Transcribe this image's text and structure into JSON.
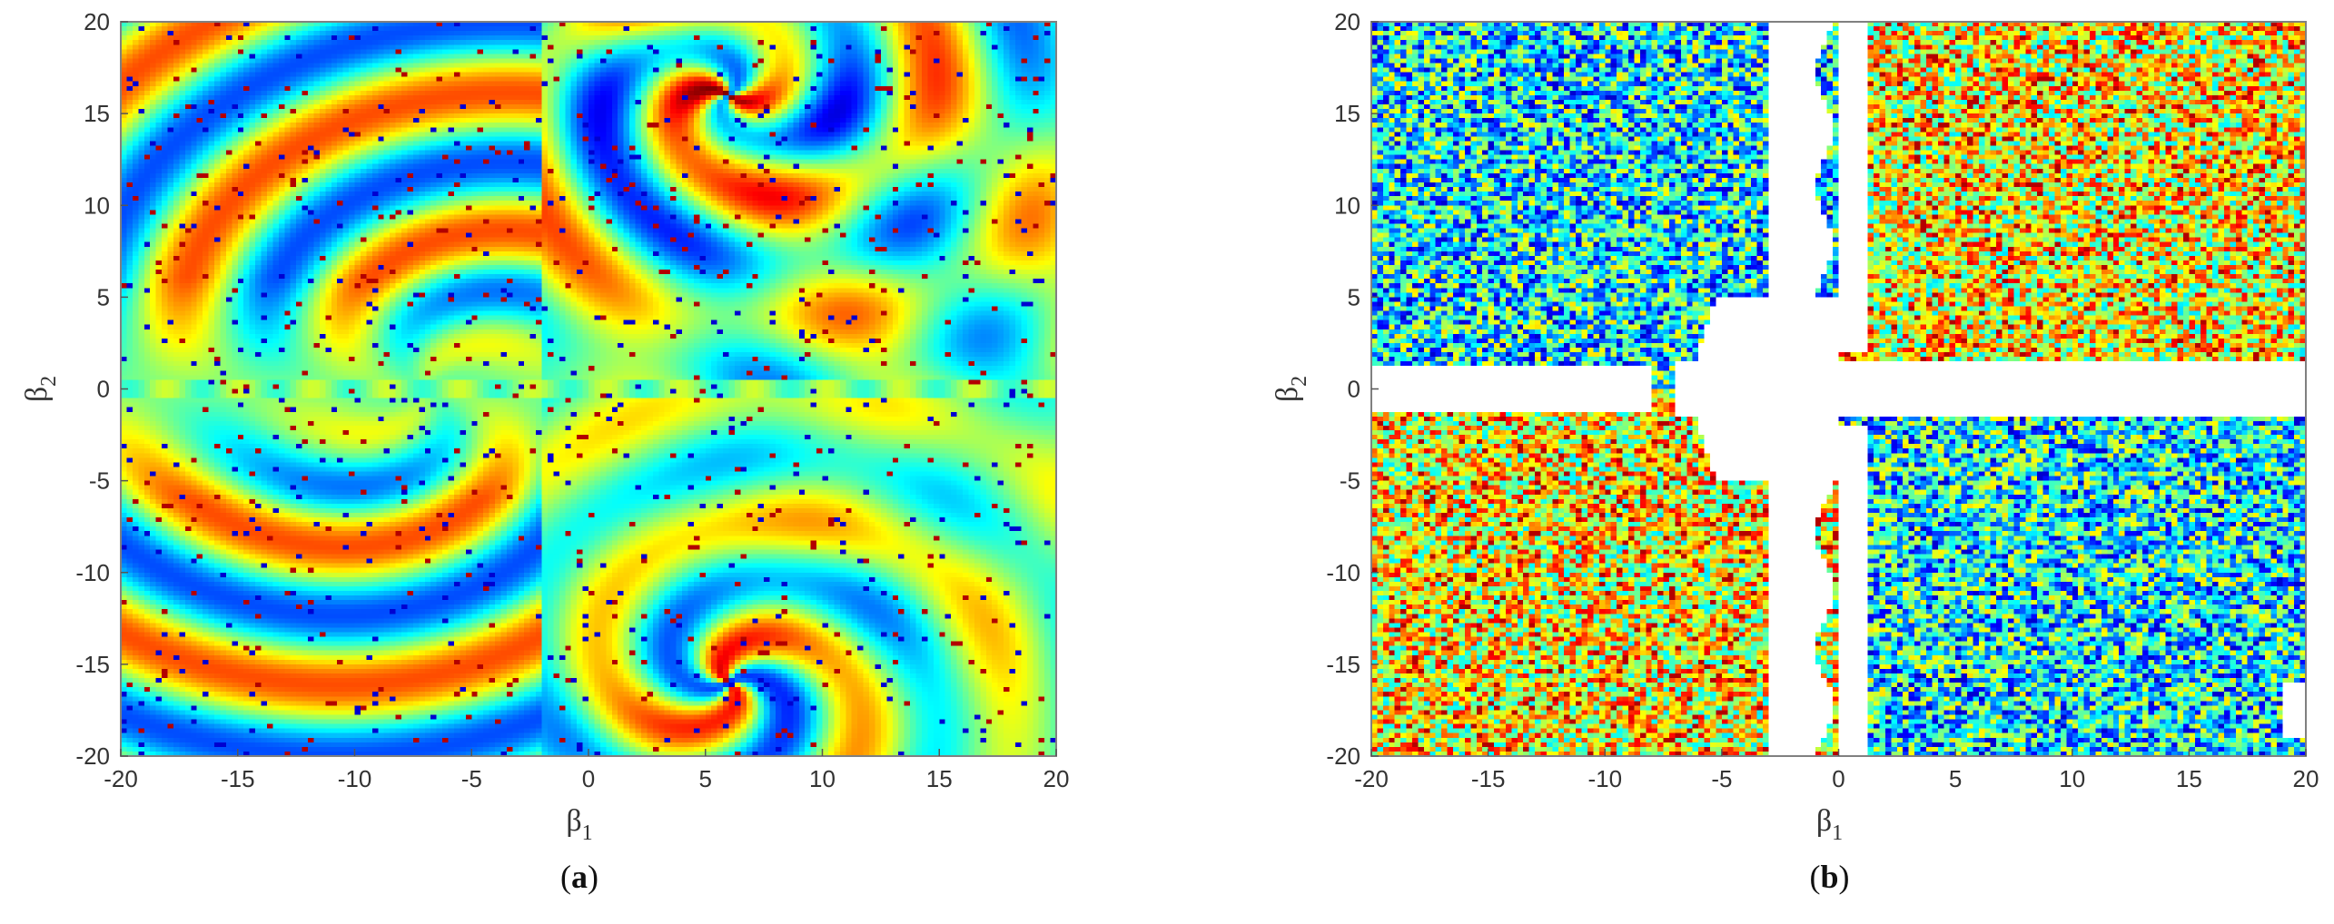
{
  "chart_data": [
    {
      "type": "heatmap",
      "panel_label": {
        "open": "(",
        "letter": "a",
        "close": ")"
      },
      "xlabel": {
        "symbol": "β",
        "sub": "1"
      },
      "ylabel": {
        "symbol": "β",
        "sub": "2"
      },
      "xlim": [
        -20,
        20
      ],
      "ylim": [
        -20,
        20
      ],
      "xticks": [
        -20,
        -15,
        -10,
        -5,
        0,
        5,
        10,
        15,
        20
      ],
      "yticks": [
        -20,
        -15,
        -10,
        -5,
        0,
        5,
        10,
        15,
        20
      ],
      "colormap": "jet",
      "background_color": "#8fe07c",
      "structure": "spiral",
      "spiral_centers": [
        [
          6,
          16
        ],
        [
          6,
          -16
        ]
      ]
    },
    {
      "type": "heatmap",
      "panel_label": {
        "open": "(",
        "letter": "b",
        "close": ")"
      },
      "xlabel": {
        "symbol": "β",
        "sub": "1"
      },
      "ylabel": {
        "symbol": "β",
        "sub": "2"
      },
      "xlim": [
        -20,
        20
      ],
      "ylim": [
        -20,
        20
      ],
      "xticks": [
        -20,
        -15,
        -10,
        -5,
        0,
        5,
        10,
        15,
        20
      ],
      "yticks": [
        -20,
        -15,
        -10,
        -5,
        0,
        5,
        10,
        15,
        20
      ],
      "colormap": "jet",
      "background_color": "#ffffff",
      "structure": "noise",
      "empty_regions": "white cross along beta1 ≈ -3..0 and beta2 ≈ -1.5..1.5"
    }
  ]
}
